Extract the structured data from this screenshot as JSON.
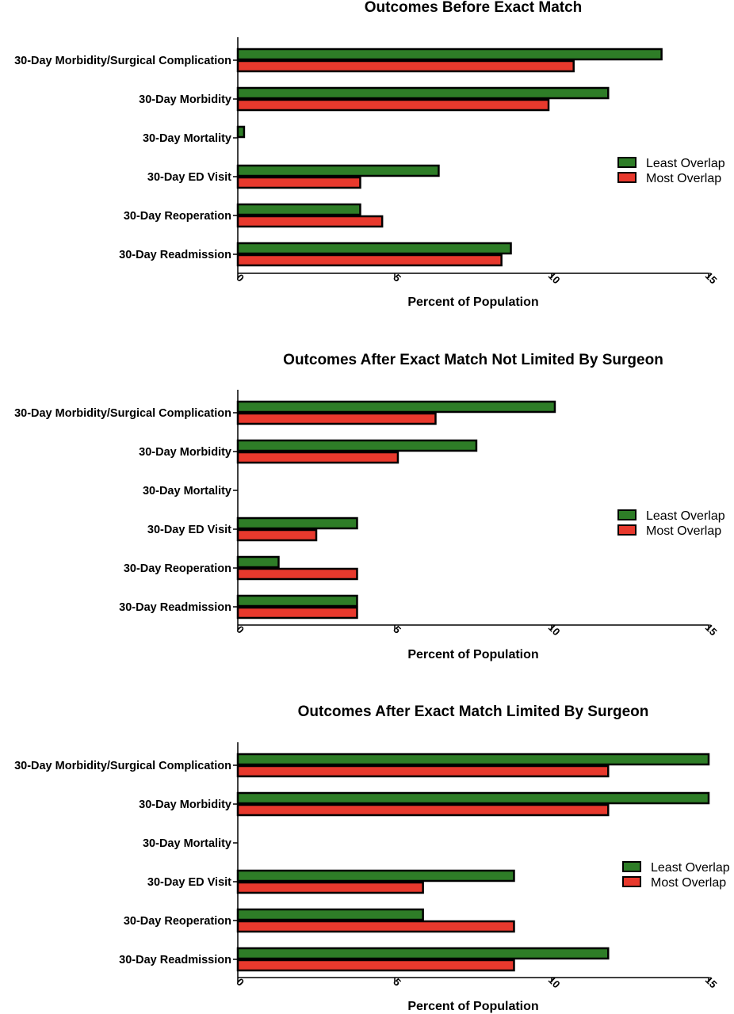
{
  "colors": {
    "least": "#2e7d27",
    "most": "#e8392d",
    "stroke": "#000000"
  },
  "chart_data": [
    {
      "type": "bar",
      "orientation": "horizontal",
      "title": "Outcomes Before Exact Match",
      "xlabel": "Percent of Population",
      "ylabel": "",
      "xlim": [
        0,
        15
      ],
      "xticks": [
        "0",
        "5",
        "10",
        "15"
      ],
      "categories": [
        "30-Day Morbidity/Surgical Complication",
        "30-Day Morbidity",
        "30-Day Mortality",
        "30-Day ED Visit",
        "30-Day Reoperation",
        "30-Day Readmission"
      ],
      "series": [
        {
          "name": "Least Overlap",
          "values": [
            13.5,
            11.8,
            0.2,
            6.4,
            3.9,
            8.7
          ]
        },
        {
          "name": "Most Overlap",
          "values": [
            10.7,
            9.9,
            0.0,
            3.9,
            4.6,
            8.4
          ]
        }
      ],
      "legend_position": "right"
    },
    {
      "type": "bar",
      "orientation": "horizontal",
      "title": "Outcomes After Exact Match Not Limited By Surgeon",
      "xlabel": "Percent of Population",
      "ylabel": "",
      "xlim": [
        0,
        15
      ],
      "xticks": [
        "0",
        "5",
        "10",
        "15"
      ],
      "categories": [
        "30-Day Morbidity/Surgical Complication",
        "30-Day Morbidity",
        "30-Day Mortality",
        "30-Day ED Visit",
        "30-Day Reoperation",
        "30-Day Readmission"
      ],
      "series": [
        {
          "name": "Least Overlap",
          "values": [
            10.1,
            7.6,
            0.0,
            3.8,
            1.3,
            3.8
          ]
        },
        {
          "name": "Most Overlap",
          "values": [
            6.3,
            5.1,
            0.0,
            2.5,
            3.8,
            3.8
          ]
        }
      ],
      "legend_position": "right"
    },
    {
      "type": "bar",
      "orientation": "horizontal",
      "title": "Outcomes After Exact Match Limited By Surgeon",
      "xlabel": "Percent of Population",
      "ylabel": "",
      "xlim": [
        0,
        15
      ],
      "xticks": [
        "0",
        "5",
        "10",
        "15"
      ],
      "categories": [
        "30-Day Morbidity/Surgical Complication",
        "30-Day Morbidity",
        "30-Day Mortality",
        "30-Day ED Visit",
        "30-Day Reoperation",
        "30-Day Readmission"
      ],
      "series": [
        {
          "name": "Least Overlap",
          "values": [
            15.0,
            15.0,
            0.0,
            8.8,
            5.9,
            11.8
          ]
        },
        {
          "name": "Most Overlap",
          "values": [
            11.8,
            11.8,
            0.0,
            5.9,
            8.8,
            8.8
          ]
        }
      ],
      "legend_position": "right"
    }
  ]
}
